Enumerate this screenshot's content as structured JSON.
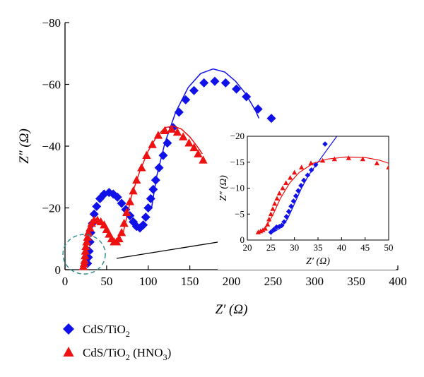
{
  "colors": {
    "cds_tio2": "#1010e8",
    "cds_tio2_hno3": "#ee1111",
    "highlight_circle": "#2a8a8a",
    "axis": "#000000"
  },
  "chart_data": {
    "type": "scatter",
    "main": {
      "xlabel": "Z′ (Ω)",
      "ylabel": "Z″ (Ω)",
      "xlim": [
        0,
        400
      ],
      "ylim": [
        0,
        -80
      ],
      "x_ticks": [
        "0",
        "50",
        "100",
        "150",
        "200",
        "250",
        "300",
        "350",
        "400"
      ],
      "y_ticks": [
        "0",
        "−20",
        "−40",
        "−60",
        "−80"
      ],
      "grid": false,
      "series": [
        {
          "name": "CdS/TiO2",
          "marker": "diamond",
          "points": [
            [
              27,
              -2
            ],
            [
              28,
              -4
            ],
            [
              29,
              -6
            ],
            [
              30,
              -9
            ],
            [
              31,
              -12
            ],
            [
              33,
              -15
            ],
            [
              35,
              -18
            ],
            [
              38,
              -20.5
            ],
            [
              42,
              -23
            ],
            [
              47,
              -24.5
            ],
            [
              53,
              -25
            ],
            [
              58,
              -24.5
            ],
            [
              63,
              -23.5
            ],
            [
              68,
              -21.5
            ],
            [
              73,
              -19.5
            ],
            [
              78,
              -17.5
            ],
            [
              82,
              -15.5
            ],
            [
              86,
              -14
            ],
            [
              90,
              -13.5
            ],
            [
              94,
              -14.5
            ],
            [
              97,
              -17
            ],
            [
              100,
              -20
            ],
            [
              103,
              -23
            ],
            [
              106,
              -26
            ],
            [
              109,
              -29
            ],
            [
              113,
              -33
            ],
            [
              118,
              -37
            ],
            [
              123,
              -41
            ],
            [
              130,
              -46
            ],
            [
              137,
              -51
            ],
            [
              145,
              -55
            ],
            [
              155,
              -58
            ],
            [
              167,
              -60.5
            ],
            [
              180,
              -61
            ],
            [
              193,
              -60.5
            ],
            [
              206,
              -58.5
            ],
            [
              218,
              -56
            ],
            [
              232,
              -52
            ],
            [
              248,
              -49
            ]
          ],
          "fit": [
            [
              104,
              -20
            ],
            [
              110,
              -30
            ],
            [
              120,
              -41
            ],
            [
              133,
              -51
            ],
            [
              148,
              -59
            ],
            [
              163,
              -63.5
            ],
            [
              178,
              -65
            ],
            [
              192,
              -64
            ],
            [
              205,
              -61
            ],
            [
              217,
              -57
            ],
            [
              229,
              -51.5
            ],
            [
              233,
              -49
            ]
          ]
        },
        {
          "name": "CdS/TiO2 (HNO3)",
          "marker": "triangle",
          "points": [
            [
              22,
              -1
            ],
            [
              23,
              -2
            ],
            [
              23.5,
              -3
            ],
            [
              24,
              -4.5
            ],
            [
              24.5,
              -6
            ],
            [
              25,
              -7.5
            ],
            [
              26,
              -9
            ],
            [
              27,
              -10.5
            ],
            [
              28,
              -12
            ],
            [
              30,
              -13.5
            ],
            [
              32,
              -15
            ],
            [
              35,
              -16
            ],
            [
              39,
              -16
            ],
            [
              43,
              -15.5
            ],
            [
              47,
              -14.5
            ],
            [
              50,
              -13
            ],
            [
              53,
              -11.5
            ],
            [
              56,
              -10
            ],
            [
              59,
              -9
            ],
            [
              62,
              -9
            ],
            [
              65,
              -10
            ],
            [
              68,
              -12
            ],
            [
              71,
              -15
            ],
            [
              74,
              -18.5
            ],
            [
              78,
              -22
            ],
            [
              82,
              -25.5
            ],
            [
              86,
              -29
            ],
            [
              92,
              -33
            ],
            [
              98,
              -37
            ],
            [
              105,
              -40.5
            ],
            [
              112,
              -43.5
            ],
            [
              120,
              -45
            ],
            [
              128,
              -45.5
            ],
            [
              135,
              -44.5
            ],
            [
              142,
              -43
            ],
            [
              149,
              -41
            ],
            [
              155,
              -39.5
            ],
            [
              160,
              -37.5
            ],
            [
              166,
              -35.5
            ]
          ],
          "fit": [
            [
              70,
              -12
            ],
            [
              80,
              -24
            ],
            [
              90,
              -32
            ],
            [
              100,
              -38.5
            ],
            [
              110,
              -43
            ],
            [
              120,
              -46
            ],
            [
              130,
              -46.5
            ],
            [
              140,
              -45.5
            ],
            [
              150,
              -43
            ],
            [
              160,
              -39.5
            ],
            [
              165,
              -37.5
            ]
          ]
        }
      ]
    },
    "inset": {
      "xlabel": "Z′ (Ω)",
      "ylabel": "Z″ (Ω)",
      "xlim": [
        20,
        50
      ],
      "ylim": [
        0,
        -20
      ],
      "x_ticks": [
        "20",
        "25",
        "30",
        "35",
        "40",
        "45",
        "50"
      ],
      "y_ticks": [
        "0",
        "−5",
        "−10",
        "−15",
        "−20"
      ],
      "series": [
        {
          "name": "CdS/TiO2",
          "marker": "diamond",
          "points": [
            [
              25,
              -1.5
            ],
            [
              25.6,
              -2
            ],
            [
              26.2,
              -2.5
            ],
            [
              26.8,
              -2.6
            ],
            [
              27.3,
              -2.8
            ],
            [
              27.8,
              -3.5
            ],
            [
              28.3,
              -4.5
            ],
            [
              28.8,
              -5.5
            ],
            [
              29.3,
              -6.5
            ],
            [
              29.8,
              -7.5
            ],
            [
              30.3,
              -8.5
            ],
            [
              30.8,
              -9.5
            ],
            [
              31.4,
              -10.5
            ],
            [
              32,
              -11.5
            ],
            [
              32.8,
              -12.5
            ],
            [
              33.6,
              -13.5
            ],
            [
              34.5,
              -14.5
            ],
            [
              36.5,
              -18.5
            ]
          ],
          "fit": [
            [
              25.5,
              -1.5
            ],
            [
              27,
              -2.3
            ],
            [
              28.5,
              -4
            ],
            [
              30,
              -7
            ],
            [
              31.5,
              -10
            ],
            [
              33,
              -12.5
            ],
            [
              35,
              -15
            ],
            [
              37,
              -17.5
            ],
            [
              39,
              -20
            ]
          ]
        },
        {
          "name": "CdS/TiO2 (HNO3)",
          "marker": "triangle",
          "points": [
            [
              22.3,
              -1.5
            ],
            [
              22.8,
              -1.7
            ],
            [
              23.3,
              -1.9
            ],
            [
              23.8,
              -2.2
            ],
            [
              24.3,
              -3
            ],
            [
              24.6,
              -4
            ],
            [
              25,
              -5
            ],
            [
              25.4,
              -6
            ],
            [
              25.8,
              -7
            ],
            [
              26.3,
              -8
            ],
            [
              26.8,
              -9
            ],
            [
              27.5,
              -10
            ],
            [
              28.2,
              -11
            ],
            [
              29.1,
              -12
            ],
            [
              30,
              -13
            ],
            [
              31.5,
              -14
            ],
            [
              33.5,
              -14.8
            ],
            [
              36,
              -15.3
            ],
            [
              38.5,
              -15.6
            ],
            [
              41.5,
              -15.8
            ],
            [
              44.5,
              -15.6
            ],
            [
              47.5,
              -14.8
            ],
            [
              50,
              -14
            ]
          ],
          "fit": [
            [
              22.5,
              -1.5
            ],
            [
              24,
              -2.5
            ],
            [
              25.5,
              -5
            ],
            [
              27,
              -8
            ],
            [
              29,
              -11
            ],
            [
              31,
              -13
            ],
            [
              34,
              -14.8
            ],
            [
              37,
              -15.6
            ],
            [
              41,
              -16
            ],
            [
              45,
              -15.9
            ],
            [
              48,
              -15.4
            ],
            [
              50,
              -14.8
            ]
          ]
        }
      ]
    },
    "legend": [
      {
        "label": "CdS/TiO",
        "sub": "2",
        "rest": "",
        "marker": "diamond"
      },
      {
        "label": "CdS/TiO",
        "sub": "2",
        "rest": " (HNO",
        "sub2": "3",
        "rest2": ")",
        "marker": "triangle"
      }
    ]
  }
}
